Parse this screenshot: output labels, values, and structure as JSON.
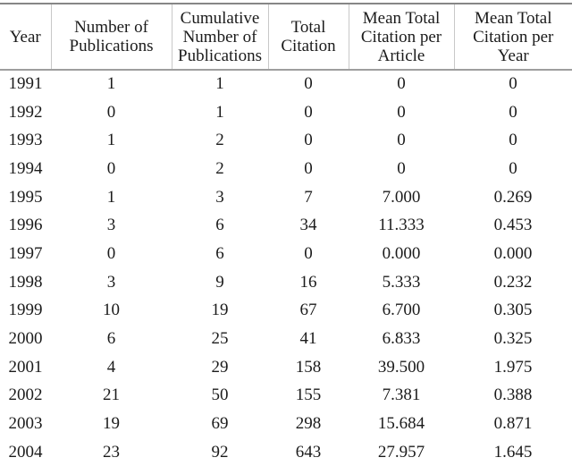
{
  "page": {
    "background_color": "#ffffff",
    "text_color": "#1b1b1b"
  },
  "table": {
    "headers": [
      "Year",
      "Number of Publications",
      "Cumulative Number of Publications",
      "Total Citation",
      "Mean Total Citation per Article",
      "Mean Total Citation per Year"
    ],
    "rows": [
      [
        "1991",
        "1",
        "1",
        "0",
        "0",
        "0"
      ],
      [
        "1992",
        "0",
        "1",
        "0",
        "0",
        "0"
      ],
      [
        "1993",
        "1",
        "2",
        "0",
        "0",
        "0"
      ],
      [
        "1994",
        "0",
        "2",
        "0",
        "0",
        "0"
      ],
      [
        "1995",
        "1",
        "3",
        "7",
        "7.000",
        "0.269"
      ],
      [
        "1996",
        "3",
        "6",
        "34",
        "11.333",
        "0.453"
      ],
      [
        "1997",
        "0",
        "6",
        "0",
        "0.000",
        "0.000"
      ],
      [
        "1998",
        "3",
        "9",
        "16",
        "5.333",
        "0.232"
      ],
      [
        "1999",
        "10",
        "19",
        "67",
        "6.700",
        "0.305"
      ],
      [
        "2000",
        "6",
        "25",
        "41",
        "6.833",
        "0.325"
      ],
      [
        "2001",
        "4",
        "29",
        "158",
        "39.500",
        "1.975"
      ],
      [
        "2002",
        "21",
        "50",
        "155",
        "7.381",
        "0.388"
      ],
      [
        "2003",
        "19",
        "69",
        "298",
        "15.684",
        "0.871"
      ],
      [
        "2004",
        "23",
        "92",
        "643",
        "27.957",
        "1.645"
      ]
    ],
    "rule_colors": {
      "top_rule": "#868686",
      "header_bottom_rule": "#9e9e9e",
      "header_column_separator": "#c8c8c8"
    }
  }
}
